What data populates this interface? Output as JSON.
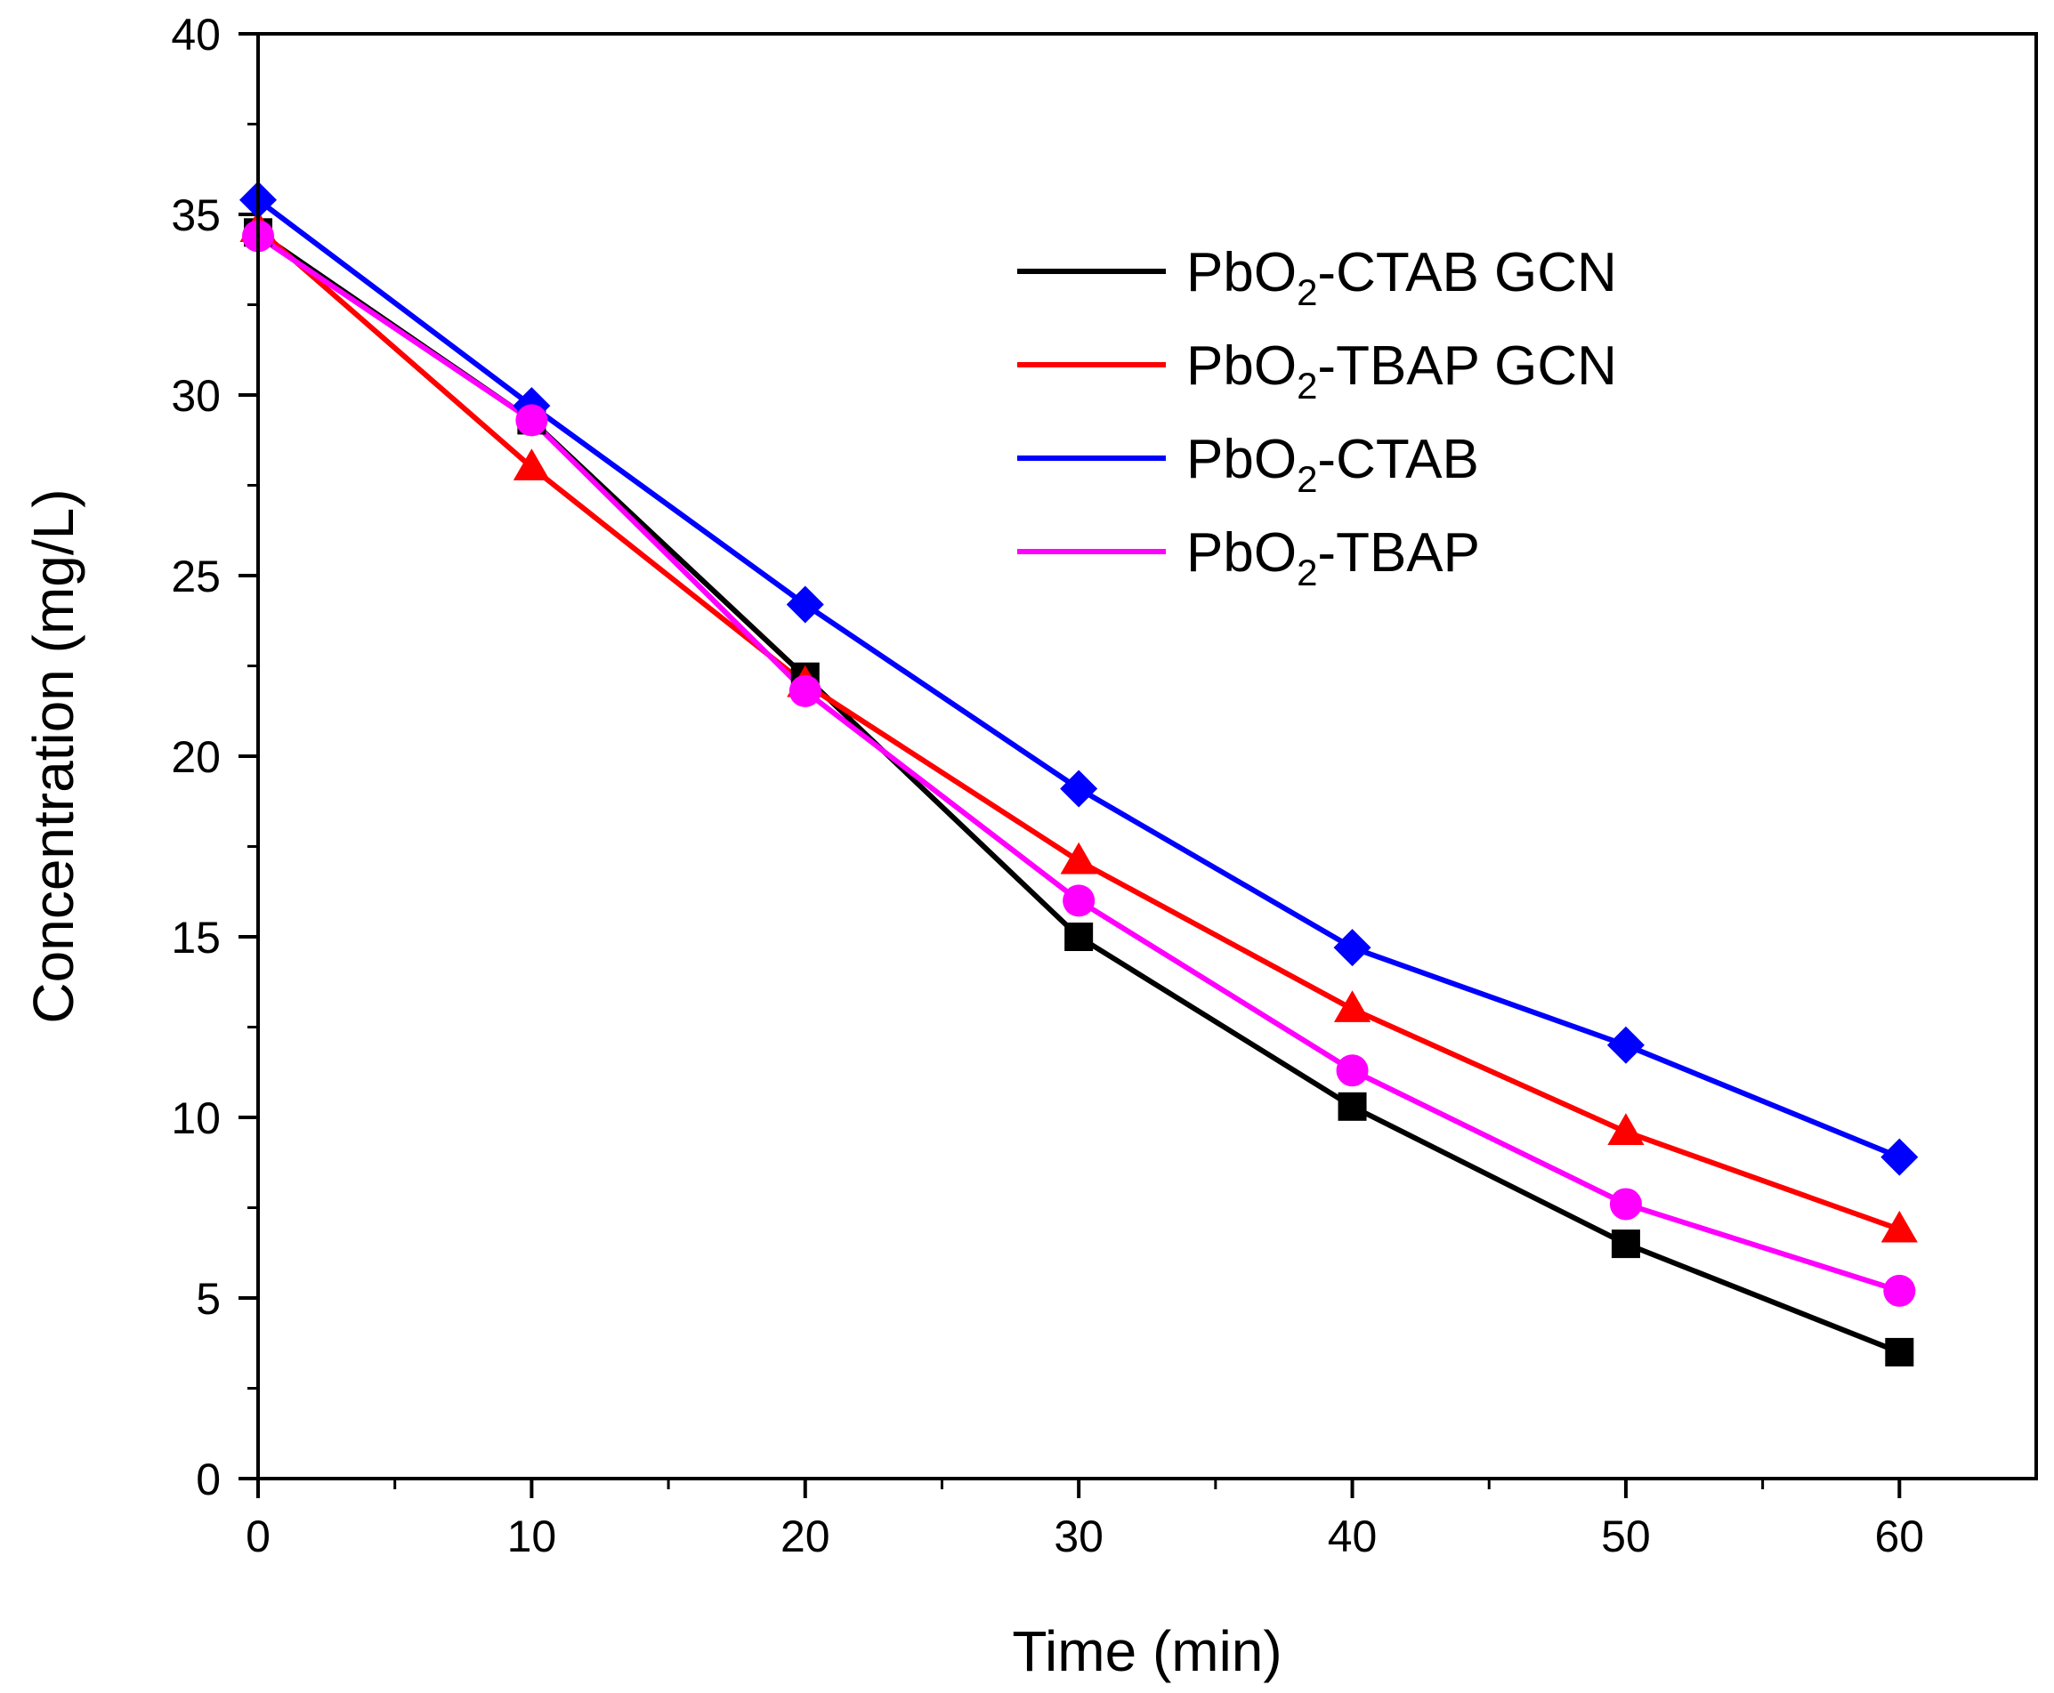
{
  "chart_data": {
    "type": "line",
    "title": "",
    "xlabel": "Time (min)",
    "ylabel": "Concentration (mg/L)",
    "xlim": [
      0,
      65
    ],
    "ylim": [
      0,
      40
    ],
    "x_ticks": [
      0,
      10,
      20,
      30,
      40,
      50,
      60
    ],
    "y_ticks": [
      0,
      5,
      10,
      15,
      20,
      25,
      30,
      35,
      40
    ],
    "x_tick_labels": [
      "0",
      "10",
      "20",
      "30",
      "40",
      "50",
      "60"
    ],
    "y_tick_labels": [
      "0",
      "5",
      "10",
      "15",
      "20",
      "25",
      "30",
      "35",
      "40"
    ],
    "grid": false,
    "legend_position": "top-right",
    "x": [
      0,
      10,
      20,
      30,
      40,
      50,
      60
    ],
    "series": [
      {
        "name": "PbO2-CTAB GCN",
        "label_main": "PbO",
        "label_sub": "2",
        "label_rest": "-CTAB GCN",
        "color": "#000000",
        "marker": "square",
        "values": [
          34.5,
          29.3,
          22.2,
          15.0,
          10.3,
          6.5,
          3.5
        ]
      },
      {
        "name": "PbO2-TBAP GCN",
        "label_main": "PbO",
        "label_sub": "2",
        "label_rest": "-TBAP GCN",
        "color": "#ff0000",
        "marker": "triangle",
        "values": [
          34.6,
          28.0,
          22.0,
          17.1,
          13.0,
          9.6,
          6.9
        ]
      },
      {
        "name": "PbO2-CTAB",
        "label_main": "PbO",
        "label_sub": "2",
        "label_rest": "-CTAB",
        "color": "#0000ff",
        "marker": "diamond",
        "values": [
          35.4,
          29.7,
          24.2,
          19.1,
          14.7,
          12.0,
          8.9
        ]
      },
      {
        "name": "PbO2-TBAP",
        "label_main": "PbO",
        "label_sub": "2",
        "label_rest": "-TBAP",
        "color": "#ff00ff",
        "marker": "circle",
        "values": [
          34.4,
          29.3,
          21.8,
          16.0,
          11.3,
          7.6,
          5.2
        ]
      }
    ]
  }
}
